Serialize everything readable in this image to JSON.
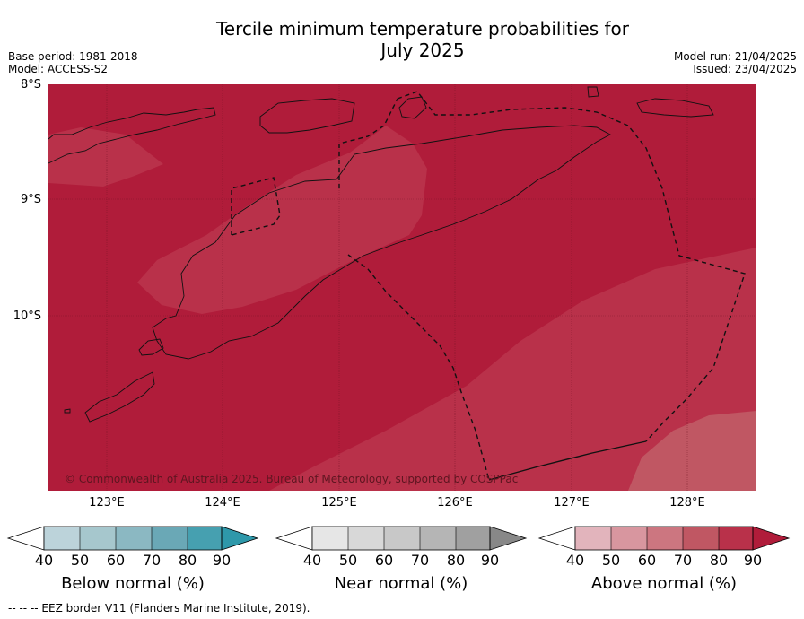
{
  "title_line1": "Tercile minimum temperature probabilities for",
  "title_line2": "July 2025",
  "base_period": "Base period: 1981-2018",
  "model": "Model: ACCESS-S2",
  "model_run": "Model run: 21/04/2025",
  "issued": "Issued: 23/04/2025",
  "latitudes": [
    "8°S",
    "9°S",
    "10°S"
  ],
  "longitudes": [
    "123°E",
    "124°E",
    "125°E",
    "126°E",
    "127°E",
    "128°E"
  ],
  "copyright": "© Commonwealth of Australia 2025. Bureau of Meteorology, supported by COSPPac",
  "footer": "-- -- -- EEZ border V11 (Flanders Marine Institute, 2019).",
  "colorbars": [
    {
      "label": "Below normal (%)",
      "ticks": [
        "40",
        "50",
        "60",
        "70",
        "80",
        "90"
      ],
      "colors": [
        "#ffffff",
        "#bcd3da",
        "#a6c7cd",
        "#8bb8c2",
        "#6aa8b6",
        "#46a0b0",
        "#2e98aa"
      ]
    },
    {
      "label": "Near normal (%)",
      "ticks": [
        "40",
        "50",
        "60",
        "70",
        "80",
        "90"
      ],
      "colors": [
        "#ffffff",
        "#e6e6e6",
        "#d8d8d8",
        "#c8c8c8",
        "#b5b5b5",
        "#a0a0a0",
        "#888888"
      ]
    },
    {
      "label": "Above normal (%)",
      "ticks": [
        "40",
        "50",
        "60",
        "70",
        "80",
        "90"
      ],
      "colors": [
        "#ffffff",
        "#e2b4bc",
        "#d8969f",
        "#cc7680",
        "#c05763",
        "#b9314a",
        "#b01c3a"
      ]
    }
  ],
  "colors": {
    "above_90": "#b01c3a",
    "above_80": "#b9314a",
    "above_70": "#c05763"
  }
}
